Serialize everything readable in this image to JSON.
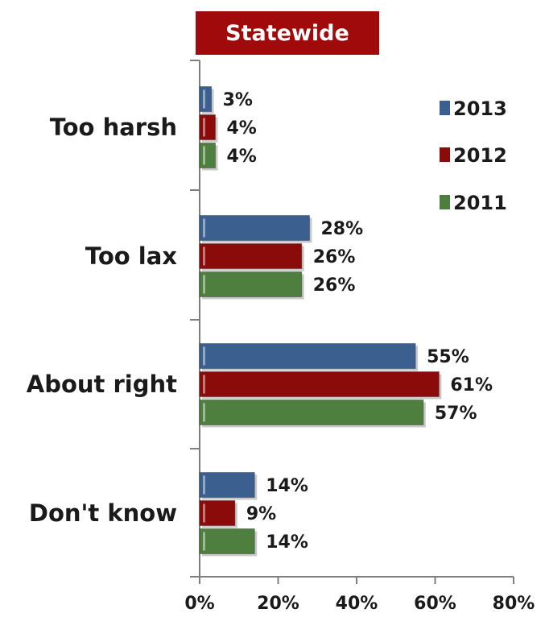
{
  "chart_data": {
    "type": "bar",
    "orientation": "horizontal",
    "title": "Statewide",
    "categories": [
      "Too harsh",
      "Too lax",
      "About right",
      "Don't know"
    ],
    "series": [
      {
        "name": "2013",
        "color": "#3b5f8f",
        "values": [
          3,
          28,
          55,
          14
        ],
        "labels": [
          "3%",
          "28%",
          "55%",
          "14%"
        ]
      },
      {
        "name": "2012",
        "color": "#8b0a0a",
        "values": [
          4,
          26,
          61,
          9
        ],
        "labels": [
          "4%",
          "26%",
          "61%",
          "9%"
        ]
      },
      {
        "name": "2011",
        "color": "#4e7f3f",
        "values": [
          4,
          26,
          57,
          14
        ],
        "labels": [
          "4%",
          "26%",
          "57%",
          "14%"
        ]
      }
    ],
    "xlim": [
      0,
      80
    ],
    "x_ticks": [
      "0%",
      "20%",
      "40%",
      "60%",
      "80%"
    ],
    "xlabel": "",
    "ylabel": "",
    "grid": false,
    "legend_position": "top-right"
  }
}
